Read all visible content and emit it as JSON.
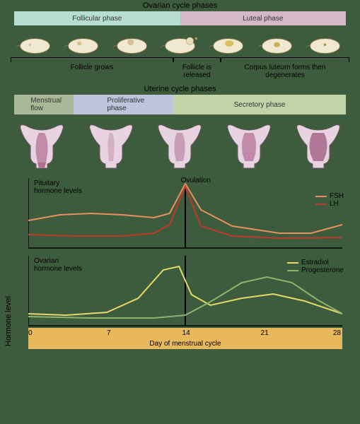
{
  "titles": {
    "ovarian": "Ovarian cycle phases",
    "uterine": "Uterine cycle phases"
  },
  "ovarian_phases": [
    {
      "label": "Follicular phase",
      "width_pct": 50,
      "color": "#b8ded4"
    },
    {
      "label": "Luteal phase",
      "width_pct": 50,
      "color": "#d4b8c6"
    }
  ],
  "ovarian_brackets": [
    {
      "label": "Follicle grows",
      "width_pct": 48
    },
    {
      "label": "Follicle is\nreleased",
      "width_pct": 14
    },
    {
      "label": "Corpus luteum forms then\ndegenerates",
      "width_pct": 38
    }
  ],
  "uterine_phases": [
    {
      "label": "Menstrual\nflow",
      "width_pct": 18,
      "color": "#a9b896"
    },
    {
      "label": "Proliferative\nphase",
      "width_pct": 30,
      "color": "#bcc5dc"
    },
    {
      "label": "Secretory phase",
      "width_pct": 52,
      "color": "#c1d4a8"
    }
  ],
  "charts": {
    "pituitary": {
      "title": "Pituitary\nhormone levels",
      "ovulation_label": "Ovulation",
      "ovulation_x": 0.5,
      "series": [
        {
          "name": "FSH",
          "color": "#e8915f",
          "points": [
            [
              0,
              0.4
            ],
            [
              0.1,
              0.48
            ],
            [
              0.2,
              0.5
            ],
            [
              0.3,
              0.48
            ],
            [
              0.4,
              0.44
            ],
            [
              0.45,
              0.5
            ],
            [
              0.5,
              0.92
            ],
            [
              0.55,
              0.55
            ],
            [
              0.65,
              0.32
            ],
            [
              0.8,
              0.22
            ],
            [
              0.9,
              0.22
            ],
            [
              1.0,
              0.34
            ]
          ]
        },
        {
          "name": "LH",
          "color": "#c0392b",
          "points": [
            [
              0,
              0.2
            ],
            [
              0.15,
              0.18
            ],
            [
              0.3,
              0.18
            ],
            [
              0.4,
              0.22
            ],
            [
              0.45,
              0.34
            ],
            [
              0.5,
              0.88
            ],
            [
              0.55,
              0.32
            ],
            [
              0.65,
              0.18
            ],
            [
              0.8,
              0.15
            ],
            [
              1.0,
              0.16
            ]
          ]
        }
      ]
    },
    "ovarian_hormones": {
      "title": "Ovarian\nhormone levels",
      "series": [
        {
          "name": "Estradiol",
          "color": "#e6d96a",
          "points": [
            [
              0,
              0.18
            ],
            [
              0.12,
              0.16
            ],
            [
              0.25,
              0.2
            ],
            [
              0.35,
              0.4
            ],
            [
              0.43,
              0.8
            ],
            [
              0.48,
              0.85
            ],
            [
              0.52,
              0.45
            ],
            [
              0.58,
              0.3
            ],
            [
              0.68,
              0.4
            ],
            [
              0.78,
              0.46
            ],
            [
              0.88,
              0.36
            ],
            [
              1.0,
              0.18
            ]
          ]
        },
        {
          "name": "Progesterone",
          "color": "#8fb36c",
          "points": [
            [
              0,
              0.14
            ],
            [
              0.2,
              0.12
            ],
            [
              0.4,
              0.12
            ],
            [
              0.5,
              0.16
            ],
            [
              0.58,
              0.35
            ],
            [
              0.68,
              0.62
            ],
            [
              0.76,
              0.7
            ],
            [
              0.84,
              0.62
            ],
            [
              0.92,
              0.38
            ],
            [
              1.0,
              0.18
            ]
          ]
        }
      ]
    }
  },
  "xaxis": {
    "label": "Day of menstrual cycle",
    "ticks": [
      0,
      7,
      14,
      21,
      28
    ],
    "color": "#e8b85c"
  },
  "ylabel": "Hormone level",
  "colors": {
    "background": "#3d5c3d",
    "ovary_fill": "#f0e8d0",
    "ovary_stroke": "#8a7a4a",
    "uterus_outer": "#e8d4e0",
    "uterus_inner": "#c08aa8",
    "uterus_stroke": "#6b5560"
  }
}
